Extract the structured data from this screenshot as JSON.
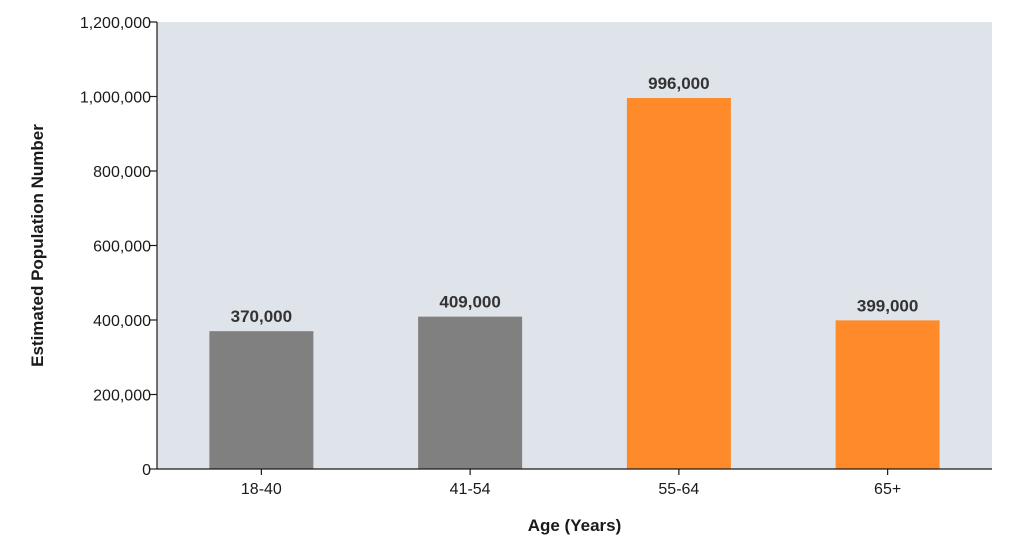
{
  "chart_data": {
    "type": "bar",
    "categories": [
      "18-40",
      "41-54",
      "55-64",
      "65+"
    ],
    "values": [
      370000,
      409000,
      996000,
      399000
    ],
    "data_labels": [
      "370,000",
      "409,000",
      "996,000",
      "399,000"
    ],
    "bar_colors": [
      "#808080",
      "#808080",
      "#FF8A2A",
      "#FF8A2A"
    ],
    "title": "",
    "xlabel": "Age (Years)",
    "ylabel": "Estimated Population Number",
    "ylim": [
      0,
      1200000
    ],
    "yticks": [
      0,
      200000,
      400000,
      600000,
      800000,
      1000000,
      1200000
    ],
    "ytick_labels": [
      "0",
      "200,000",
      "400,000",
      "600,000",
      "800,000",
      "1,000,000",
      "1,200,000"
    ],
    "plot_background": "#DFE3EA",
    "grid": false,
    "legend": "none"
  }
}
